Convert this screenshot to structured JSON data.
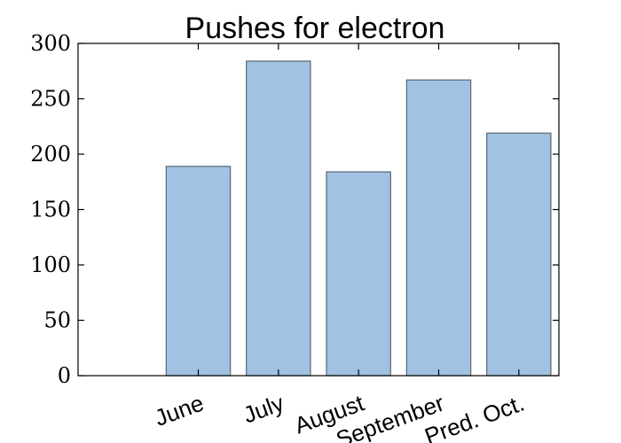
{
  "chart_data": {
    "type": "bar",
    "title": "Pushes for electron",
    "categories": [
      "June",
      "July",
      "August",
      "September",
      "Pred. Oct."
    ],
    "values": [
      189,
      284,
      184,
      267,
      219
    ],
    "xlabel": "",
    "ylabel": "",
    "ylim": [
      0,
      300
    ],
    "yticks": [
      0,
      50,
      100,
      150,
      200,
      250,
      300
    ],
    "ytick_labels": [
      "0",
      "50",
      "100",
      "150",
      "200",
      "250",
      "300"
    ],
    "grid": false,
    "legend": "none",
    "bar_color": "#a0c2e3",
    "bar_edge_color": "#5a6670"
  }
}
